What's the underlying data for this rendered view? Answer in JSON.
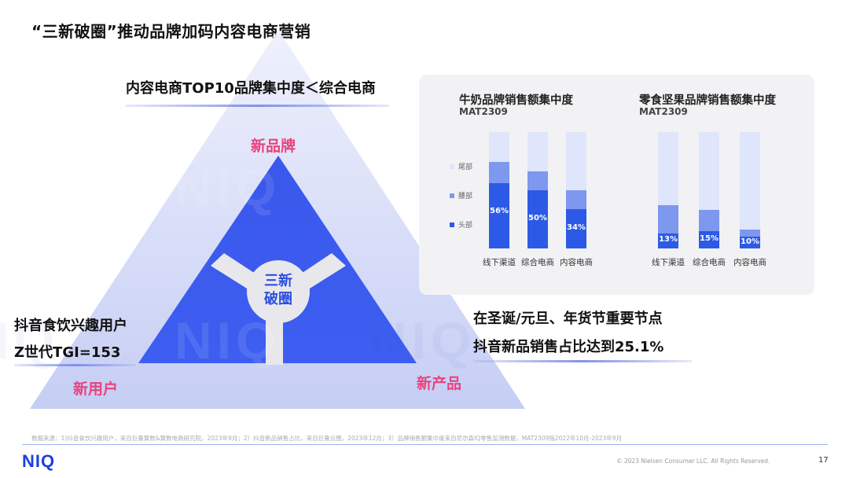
{
  "slide": {
    "title": "“三新破圈”推动品牌加码内容电商营销",
    "page_number": "17",
    "footnote": "数据来源：1)抖音食饮兴趣用户，来自巨量算数&算数电商研究院，2023年9月；2）抖音新品销售占比，来自巨量云图，2023年12月；3）品牌销售额集中度来自尼尔森IQ零售监测数据，MAT2309指2022年10月-2023年9月",
    "copyright": "© 2023 Nielsen Consumer LLC. All Rights Reserved.",
    "logo_text": "NIQ",
    "watermark": "NIQ"
  },
  "triangle": {
    "center_text_line1": "三新",
    "center_text_line2": "破圈",
    "top_label": "新品牌",
    "left_label": "新用户",
    "right_label": "新产品",
    "top_callout": "内容电商TOP10品牌集中度＜综合电商",
    "left_callout_line1": "抖音食饮兴趣用户",
    "left_callout_line2": "Z世代TGI=153",
    "right_callout_line1": "在圣诞/元旦、年货节重要节点",
    "right_callout_line2": "抖音新品销售占比达到25.1%",
    "colors": {
      "outer": "#c9d0f7",
      "inner": "#3650e8",
      "pink": "#e8437f"
    }
  },
  "legend": [
    {
      "label": "尾部",
      "color": "#dfe5fb"
    },
    {
      "label": "腰部",
      "color": "#7e97ef"
    },
    {
      "label": "头部",
      "color": "#2c5ae6"
    }
  ],
  "chart_data": [
    {
      "type": "bar",
      "stacked": true,
      "title": "牛奶品牌销售额集中度",
      "subtitle": "MAT2309",
      "categories": [
        "线下渠道",
        "综合电商",
        "内容电商"
      ],
      "series": [
        {
          "name": "头部",
          "values": [
            56,
            50,
            34
          ],
          "labels": [
            "56%",
            "50%",
            "34%"
          ]
        },
        {
          "name": "腰部",
          "values": [
            18,
            16,
            16
          ]
        },
        {
          "name": "尾部",
          "values": [
            26,
            34,
            50
          ]
        }
      ],
      "ylim": [
        0,
        100
      ]
    },
    {
      "type": "bar",
      "stacked": true,
      "title": "零食坚果品牌销售额集中度",
      "subtitle": "MAT2309",
      "categories": [
        "线下渠道",
        "综合电商",
        "内容电商"
      ],
      "series": [
        {
          "name": "头部",
          "values": [
            13,
            15,
            10
          ],
          "labels": [
            "13%",
            "15%",
            "10%"
          ]
        },
        {
          "name": "腰部",
          "values": [
            24,
            18,
            6
          ]
        },
        {
          "name": "尾部",
          "values": [
            63,
            67,
            84
          ]
        }
      ],
      "ylim": [
        0,
        100
      ]
    }
  ]
}
